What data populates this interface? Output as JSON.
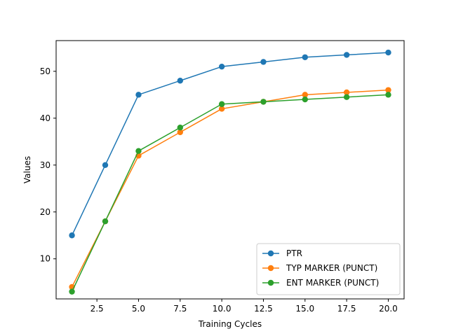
{
  "chart_data": {
    "type": "line",
    "title": "",
    "xlabel": "Training Cycles",
    "ylabel": "Values",
    "xlim": [
      0.05,
      20.95
    ],
    "ylim": [
      1.45,
      56.55
    ],
    "x_ticks": [
      2.5,
      5.0,
      7.5,
      10.0,
      12.5,
      15.0,
      17.5,
      20.0
    ],
    "x_tick_labels": [
      "2.5",
      "5.0",
      "7.5",
      "10.0",
      "12.5",
      "15.0",
      "17.5",
      "20.0"
    ],
    "y_ticks": [
      10,
      20,
      30,
      40,
      50
    ],
    "y_tick_labels": [
      "10",
      "20",
      "30",
      "40",
      "50"
    ],
    "grid": false,
    "legend_position": "lower-right",
    "x": [
      1,
      3,
      5,
      7.5,
      10,
      12.5,
      15,
      17.5,
      20
    ],
    "series": [
      {
        "name": "PTR",
        "color": "#1f77b4",
        "values": [
          15,
          30,
          45,
          48,
          51,
          52,
          53,
          53.5,
          54
        ]
      },
      {
        "name": "TYP MARKER (PUNCT)",
        "color": "#ff7f0e",
        "values": [
          4,
          18,
          32,
          37,
          42,
          43.5,
          45,
          45.5,
          46
        ]
      },
      {
        "name": "ENT MARKER (PUNCT)",
        "color": "#2ca02c",
        "values": [
          3,
          18,
          33,
          38,
          43,
          43.5,
          44,
          44.5,
          45
        ]
      }
    ]
  }
}
